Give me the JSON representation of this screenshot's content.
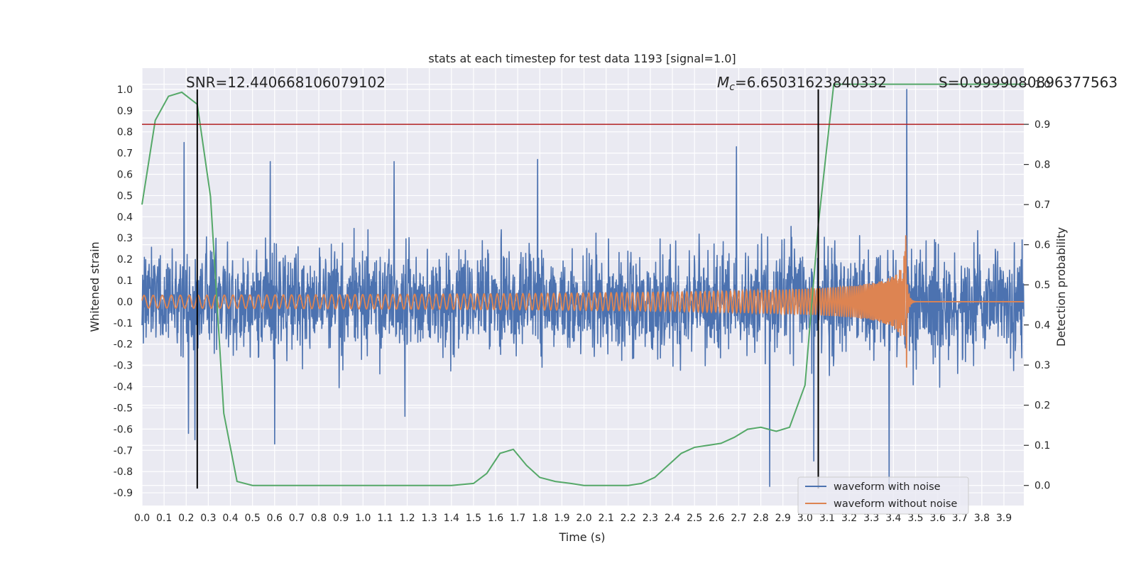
{
  "chart_data": {
    "type": "line",
    "title": "stats at each timestep for test data 1193 [signal=1.0]",
    "xlabel": "Time (s)",
    "ylabel": "Whitened strain",
    "ylabel_right": "Detection probability",
    "xlim": [
      0.0,
      3.99
    ],
    "ylim": [
      -0.96,
      1.1
    ],
    "ylim_right": [
      -0.05,
      1.04
    ],
    "x_ticks": [
      "0.0",
      "0.1",
      "0.2",
      "0.3",
      "0.4",
      "0.5",
      "0.6",
      "0.7",
      "0.8",
      "0.9",
      "1.0",
      "1.1",
      "1.2",
      "1.3",
      "1.4",
      "1.5",
      "1.6",
      "1.7",
      "1.8",
      "1.9",
      "2.0",
      "2.1",
      "2.2",
      "2.3",
      "2.4",
      "2.5",
      "2.6",
      "2.7",
      "2.8",
      "2.9",
      "3.0",
      "3.1",
      "3.2",
      "3.3",
      "3.4",
      "3.5",
      "3.6",
      "3.7",
      "3.8",
      "3.9"
    ],
    "y_ticks": [
      "-0.9",
      "-0.8",
      "-0.7",
      "-0.6",
      "-0.5",
      "-0.4",
      "-0.3",
      "-0.2",
      "-0.1",
      "0.0",
      "0.1",
      "0.2",
      "0.3",
      "0.4",
      "0.5",
      "0.6",
      "0.7",
      "0.8",
      "0.9",
      "1.0"
    ],
    "y_ticks_right": [
      "0.0",
      "0.1",
      "0.2",
      "0.3",
      "0.4",
      "0.5",
      "0.6",
      "0.7",
      "0.8",
      "0.9",
      "1.0"
    ],
    "grid": true,
    "legend_position": "lower-right",
    "annotations": {
      "snr": "SNR=12.440668106079102",
      "mc_symbol": "M",
      "mc_subscript": "c",
      "mc_value": "=6.65031623840332",
      "s": "S=0.9999080896377563"
    },
    "vlines_x": [
      0.25,
      3.06
    ],
    "threshold_right": 0.9,
    "series": [
      {
        "name": "waveform with noise",
        "color": "#4c72b0",
        "envelope": "noise band spanning roughly -0.45 to 0.45 with spikes",
        "spikes": [
          [
            0.19,
            0.75
          ],
          [
            0.21,
            -0.62
          ],
          [
            0.24,
            -0.65
          ],
          [
            0.58,
            0.66
          ],
          [
            0.6,
            -0.67
          ],
          [
            1.14,
            0.66
          ],
          [
            1.79,
            0.67
          ],
          [
            2.69,
            0.73
          ],
          [
            2.84,
            -0.87
          ],
          [
            3.04,
            -0.75
          ],
          [
            3.46,
            1.0
          ],
          [
            3.38,
            -0.88
          ]
        ]
      },
      {
        "name": "waveform without noise",
        "color": "#dd8452",
        "chirp": {
          "start": 0.0,
          "merger": 3.46,
          "amp_start": 0.03,
          "amp_peak": 0.35,
          "amp_trough": -0.26
        }
      },
      {
        "name": "detection probability",
        "color": "#55a868",
        "axis": "right",
        "x": [
          0.0,
          0.06,
          0.12,
          0.18,
          0.25,
          0.31,
          0.37,
          0.43,
          0.5,
          0.56,
          0.62,
          0.7,
          0.8,
          0.9,
          1.0,
          1.1,
          1.2,
          1.3,
          1.4,
          1.5,
          1.56,
          1.62,
          1.68,
          1.74,
          1.8,
          1.87,
          1.94,
          2.0,
          2.1,
          2.2,
          2.26,
          2.32,
          2.38,
          2.44,
          2.5,
          2.56,
          2.62,
          2.68,
          2.74,
          2.8,
          2.87,
          2.93,
          3.0,
          3.06,
          3.13,
          3.2,
          3.3,
          3.4,
          3.5,
          3.6,
          3.7,
          3.8,
          3.9,
          3.99
        ],
        "y": [
          0.7,
          0.91,
          0.97,
          0.98,
          0.95,
          0.72,
          0.18,
          0.01,
          0.0,
          0.0,
          0.0,
          0.0,
          0.0,
          0.0,
          0.0,
          0.0,
          0.0,
          0.0,
          0.0,
          0.005,
          0.03,
          0.08,
          0.09,
          0.05,
          0.02,
          0.01,
          0.005,
          0.0,
          0.0,
          0.0,
          0.005,
          0.02,
          0.05,
          0.08,
          0.095,
          0.1,
          0.105,
          0.12,
          0.14,
          0.145,
          0.135,
          0.145,
          0.25,
          0.65,
          1.0,
          1.0,
          1.0,
          1.0,
          1.0,
          1.0,
          1.0,
          1.0,
          1.0,
          1.0
        ]
      }
    ]
  }
}
